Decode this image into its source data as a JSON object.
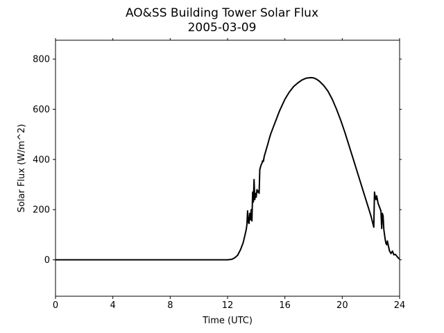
{
  "chart_data": {
    "type": "line",
    "title": "AO&SS Building Tower Solar Flux",
    "subtitle": "2005-03-09",
    "xlabel": "Time (UTC)",
    "ylabel": "Solar Flux (W/m^2)",
    "xlim": [
      0,
      24
    ],
    "ylim": [
      -145,
      875
    ],
    "xticks": [
      0,
      4,
      8,
      12,
      16,
      20,
      24
    ],
    "yticks": [
      0,
      200,
      400,
      600,
      800
    ],
    "grid": false,
    "line_color": "#000000",
    "series": [
      {
        "x": [
          0,
          2,
          4,
          6,
          8,
          10,
          11,
          11.8,
          12.0,
          12.3,
          12.5,
          12.7,
          12.9,
          13.0,
          13.1,
          13.2,
          13.3,
          13.35,
          13.4,
          13.45,
          13.5,
          13.55,
          13.6,
          13.65,
          13.7,
          13.75,
          13.8,
          13.85,
          13.9,
          13.95,
          14.0,
          14.05,
          14.1,
          14.15,
          14.2,
          14.25,
          14.3,
          14.35,
          14.4,
          14.45,
          14.5,
          14.55,
          14.6,
          14.7,
          14.8,
          14.9,
          15.0,
          15.2,
          15.4,
          15.6,
          15.8,
          16.0,
          16.3,
          16.6,
          16.9,
          17.2,
          17.5,
          17.8,
          18.0,
          18.2,
          18.4,
          18.7,
          19.0,
          19.3,
          19.6,
          19.9,
          20.2,
          20.5,
          20.8,
          21.1,
          21.4,
          21.7,
          22.0,
          22.2,
          22.25,
          22.3,
          22.35,
          22.4,
          22.5,
          22.6,
          22.7,
          22.75,
          22.8,
          22.85,
          22.9,
          23.0,
          23.05,
          23.1,
          23.15,
          23.2,
          23.3,
          23.35,
          23.4,
          23.5,
          23.6,
          23.7,
          23.8,
          23.9,
          24.0
        ],
        "y": [
          0,
          0,
          0,
          0,
          0,
          0,
          0,
          0,
          0,
          2,
          8,
          18,
          40,
          55,
          70,
          95,
          120,
          140,
          195,
          150,
          145,
          185,
          160,
          200,
          155,
          270,
          230,
          320,
          240,
          265,
          250,
          280,
          270,
          275,
          265,
          360,
          370,
          380,
          385,
          395,
          392,
          410,
          420,
          440,
          460,
          480,
          500,
          530,
          560,
          590,
          615,
          640,
          668,
          690,
          705,
          717,
          724,
          726,
          725,
          720,
          712,
          695,
          672,
          640,
          600,
          555,
          505,
          450,
          395,
          340,
          285,
          230,
          175,
          130,
          270,
          250,
          240,
          255,
          225,
          210,
          195,
          125,
          185,
          175,
          120,
          80,
          65,
          60,
          75,
          60,
          35,
          30,
          25,
          35,
          20,
          22,
          15,
          8,
          3
        ]
      }
    ]
  }
}
